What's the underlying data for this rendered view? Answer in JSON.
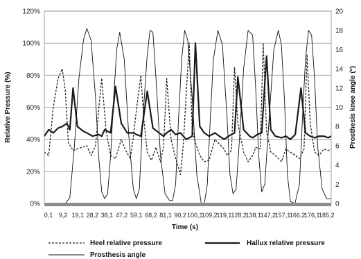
{
  "chart_data": {
    "type": "line",
    "title": "",
    "xlabel": "Time (s)",
    "ylabel_left": "Relative Pressure (%)",
    "ylabel_right": "Prosthesis knee angle (°)",
    "x_tick_labels": [
      "0,1",
      "9,2",
      "19,1",
      "28,2",
      "38,1",
      "47,2",
      "59,1",
      "68,2",
      "81,1",
      "90,2",
      "100,1",
      "109,2",
      "119,1",
      "128,2",
      "138,1",
      "147,2",
      "157,1",
      "166,2",
      "176,1",
      "185,2"
    ],
    "y_left_ticks": [
      "0%",
      "20%",
      "40%",
      "60%",
      "80%",
      "100%",
      "120%"
    ],
    "y_right_ticks": [
      "0",
      "2",
      "4",
      "6",
      "8",
      "10",
      "12",
      "14",
      "16",
      "18",
      "20"
    ],
    "ylim_left": [
      0,
      120
    ],
    "ylim_right": [
      0,
      20
    ],
    "xlim": [
      0.1,
      190
    ],
    "grid": "horizontal",
    "legend_position": "bottom",
    "series": [
      {
        "name": "Heel relative pressure",
        "axis": "left",
        "style": "dashed",
        "color": "#222222",
        "x": [
          0.1,
          3,
          6,
          9.2,
          12,
          14,
          16,
          19.1,
          22,
          25,
          28.2,
          31,
          34,
          36,
          38.1,
          41,
          44,
          47.2,
          51,
          54,
          57,
          59.1,
          61,
          64,
          66,
          68.2,
          71,
          74,
          77,
          79,
          81.1,
          84,
          87,
          89,
          90.2,
          92,
          96,
          98,
          100.1,
          103,
          106,
          109.2,
          113,
          116,
          119.1,
          121,
          124,
          126,
          128.2,
          132,
          135,
          138.1,
          140,
          143,
          145,
          147.2,
          150,
          153,
          155,
          157.1,
          160,
          163,
          166.2,
          169,
          172,
          174,
          176.1,
          179,
          182,
          185.2,
          188,
          190
        ],
        "values": [
          32,
          30,
          60,
          78,
          84,
          70,
          38,
          33,
          34,
          35,
          36,
          30,
          36,
          58,
          78,
          45,
          30,
          28,
          40,
          33,
          28,
          42,
          58,
          80,
          52,
          32,
          27,
          35,
          26,
          35,
          78,
          40,
          28,
          22,
          18,
          36,
          100,
          46,
          38,
          30,
          26,
          27,
          40,
          37,
          34,
          30,
          33,
          85,
          50,
          32,
          26,
          30,
          35,
          34,
          100,
          45,
          32,
          30,
          28,
          26,
          34,
          32,
          30,
          28,
          34,
          93,
          50,
          32,
          30,
          34,
          33,
          34
        ]
      },
      {
        "name": "Hallux relative pressure",
        "axis": "left",
        "style": "solid-bold",
        "color": "#1a1a1a",
        "x": [
          0.1,
          3,
          6,
          9.2,
          12,
          15,
          17,
          19.1,
          22,
          26,
          28.2,
          32,
          36,
          38.1,
          40,
          44,
          47.2,
          51,
          55,
          59.1,
          61,
          64,
          68.2,
          72,
          76,
          79,
          81.1,
          84,
          87,
          90.2,
          94,
          98,
          100.1,
          103,
          106,
          109.2,
          113,
          116,
          119.1,
          122,
          126,
          128.2,
          132,
          136,
          138.1,
          141,
          144,
          147.2,
          150,
          153,
          157.1,
          160,
          163,
          166.2,
          170,
          173,
          176.1,
          179,
          182,
          185.2,
          188,
          190
        ],
        "values": [
          42,
          46,
          44,
          47,
          48,
          50,
          46,
          72,
          48,
          45,
          44,
          42,
          43,
          42,
          46,
          44,
          73,
          50,
          44,
          44,
          43,
          42,
          70,
          47,
          44,
          42,
          44,
          46,
          43,
          44,
          40,
          42,
          100,
          48,
          44,
          42,
          44,
          42,
          40,
          42,
          44,
          79,
          46,
          42,
          41,
          43,
          44,
          92,
          46,
          42,
          41,
          42,
          40,
          43,
          72,
          44,
          42,
          41,
          42,
          42,
          41,
          42
        ]
      },
      {
        "name": "Prosthesis angle",
        "axis": "right",
        "style": "solid-thin",
        "color": "#111111",
        "x": [
          0.1,
          5,
          10,
          12,
          14,
          17,
          20,
          23,
          26,
          28.2,
          31,
          34,
          36,
          38.1,
          40,
          42,
          44,
          46,
          48,
          50,
          53,
          56,
          59,
          61,
          63,
          65,
          68,
          70,
          72,
          74,
          77,
          80,
          83,
          85,
          87,
          89,
          91,
          93,
          95,
          98,
          101,
          104,
          106,
          108,
          110,
          112,
          115,
          118,
          121,
          123,
          125,
          127,
          129,
          132,
          135,
          138,
          140,
          142,
          144,
          146,
          149,
          152,
          155,
          157,
          159,
          161,
          163,
          166,
          169,
          171,
          173,
          175,
          177,
          179,
          181,
          184,
          187,
          190
        ],
        "values": [
          0,
          0,
          0,
          0,
          0,
          0.6,
          6,
          13,
          17,
          18.2,
          17,
          11,
          5,
          1.2,
          0.5,
          1,
          5,
          11,
          16,
          17.8,
          15,
          7,
          1.5,
          0.5,
          1.5,
          8,
          15,
          18,
          17.8,
          13,
          5,
          1,
          0.3,
          0.3,
          2,
          9,
          15,
          18,
          17,
          11,
          3,
          0,
          0,
          2,
          9,
          15,
          18,
          16.5,
          9,
          3,
          1,
          1.5,
          6,
          14,
          18,
          17.5,
          12,
          5,
          1.2,
          2,
          9,
          16,
          18,
          16.5,
          11,
          3,
          0.2,
          0,
          2,
          9,
          15,
          18,
          17.5,
          13,
          6,
          1.5,
          0.5,
          0.5
        ]
      }
    ]
  }
}
